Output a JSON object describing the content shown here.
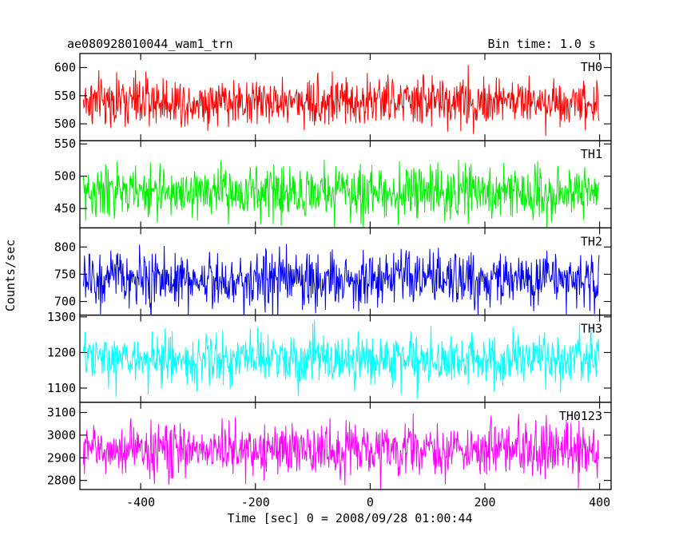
{
  "header": {
    "title": "ae080928010044_wam1_trn",
    "bin_time": "Bin time: 1.0 s"
  },
  "chart_data": {
    "type": "line",
    "xlabel": "Time [sec] 0 = 2008/09/28 01:00:44",
    "ylabel": "Counts/sec",
    "xlim": [
      -506,
      420
    ],
    "xticks": [
      -400,
      -200,
      0,
      200,
      400
    ],
    "x_start": -500,
    "x_end": 399,
    "x_step": 1,
    "panels": [
      {
        "name": "TH0",
        "color": "#ff0000",
        "ylim": [
          470,
          625
        ],
        "yticks": [
          500,
          550,
          600
        ],
        "mean": 540,
        "spread": 22
      },
      {
        "name": "TH1",
        "color": "#00ee00",
        "ylim": [
          420,
          555
        ],
        "yticks": [
          450,
          500,
          550
        ],
        "mean": 475,
        "spread": 20
      },
      {
        "name": "TH2",
        "color": "#0000ee",
        "ylim": [
          675,
          835
        ],
        "yticks": [
          700,
          750,
          800
        ],
        "mean": 740,
        "spread": 26
      },
      {
        "name": "TH3",
        "color": "#00ffff",
        "ylim": [
          1060,
          1305
        ],
        "yticks": [
          1100,
          1200,
          1300
        ],
        "mean": 1180,
        "spread": 36
      },
      {
        "name": "TH0123",
        "color": "#ff00ff",
        "ylim": [
          2760,
          3145
        ],
        "yticks": [
          2800,
          2900,
          3000,
          3100
        ],
        "mean": 2935,
        "spread": 58
      }
    ]
  }
}
